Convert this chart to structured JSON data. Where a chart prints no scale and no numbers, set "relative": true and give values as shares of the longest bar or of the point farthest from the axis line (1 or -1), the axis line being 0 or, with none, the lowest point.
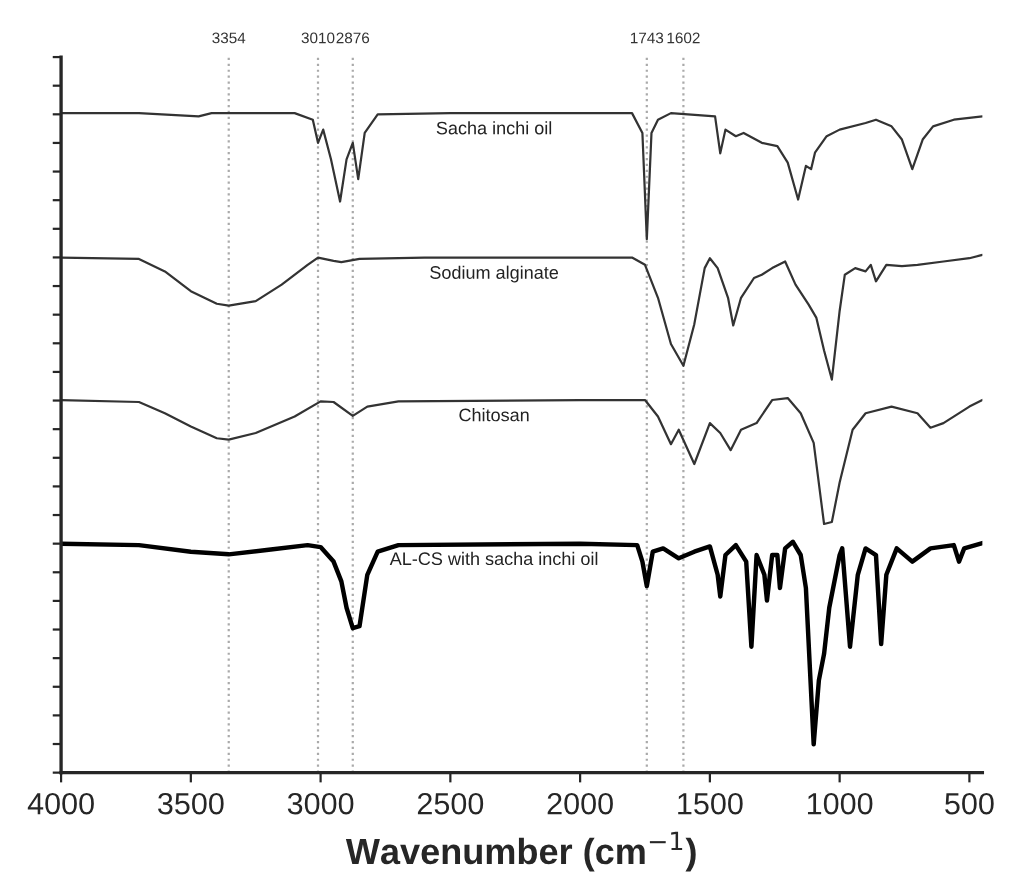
{
  "chart_data": {
    "type": "line",
    "relative": true,
    "xlabel": "Wavenumber (cm$^{−1}$)",
    "xlim": [
      4000,
      450
    ],
    "xticks": [
      4000,
      3500,
      3000,
      2500,
      2000,
      1500,
      1000,
      500
    ],
    "tick_labels": "x",
    "grid": false,
    "legend": false,
    "line_style": "solid",
    "ref_lines": [
      {
        "axis": "x",
        "value": 3354,
        "label": "3354",
        "color": "#aaaaaa",
        "line_style": "dotted"
      },
      {
        "axis": "x",
        "value": 3010,
        "label": "3010",
        "color": "#aaaaaa",
        "line_style": "dotted"
      },
      {
        "axis": "x",
        "value": 2876,
        "label": "2876",
        "color": "#aaaaaa",
        "line_style": "dotted"
      },
      {
        "axis": "x",
        "value": 1743,
        "label": "1743",
        "color": "#aaaaaa",
        "line_style": "dotted"
      },
      {
        "axis": "x",
        "value": 1602,
        "label": "1602",
        "color": "#aaaaaa",
        "line_style": "dotted"
      }
    ],
    "series": [
      {
        "name": "Sacha inchi oil",
        "color": "#333333",
        "x": [
          4000,
          3700,
          3470,
          3420,
          3100,
          3030,
          3010,
          2990,
          2960,
          2925,
          2900,
          2876,
          2855,
          2830,
          2780,
          2500,
          1800,
          1760,
          1743,
          1725,
          1700,
          1650,
          1480,
          1460,
          1440,
          1400,
          1370,
          1300,
          1240,
          1200,
          1160,
          1130,
          1110,
          1095,
          1050,
          1000,
          900,
          860,
          800,
          760,
          720,
          680,
          640,
          560,
          450
        ],
        "values": [
          1.0,
          1.0,
          0.995,
          1.0,
          1.0,
          0.99,
          0.955,
          0.975,
          0.93,
          0.866,
          0.93,
          0.955,
          0.9,
          0.97,
          0.998,
          1.0,
          1.0,
          0.97,
          0.809,
          0.97,
          0.99,
          1.0,
          0.995,
          0.939,
          0.975,
          0.965,
          0.97,
          0.955,
          0.95,
          0.925,
          0.869,
          0.92,
          0.915,
          0.94,
          0.965,
          0.975,
          0.985,
          0.99,
          0.98,
          0.96,
          0.915,
          0.96,
          0.98,
          0.99,
          0.995
        ]
      },
      {
        "name": "Sodium alginate",
        "color": "#333333",
        "x": [
          4000,
          3700,
          3600,
          3500,
          3400,
          3354,
          3250,
          3150,
          3050,
          3010,
          2950,
          2920,
          2850,
          2600,
          2000,
          1800,
          1750,
          1700,
          1650,
          1602,
          1560,
          1520,
          1500,
          1470,
          1430,
          1410,
          1380,
          1330,
          1300,
          1260,
          1210,
          1170,
          1120,
          1090,
          1060,
          1030,
          1000,
          980,
          940,
          900,
          880,
          860,
          820,
          760,
          700,
          600,
          500,
          450
        ],
        "values": [
          0.781,
          0.779,
          0.76,
          0.73,
          0.711,
          0.708,
          0.715,
          0.74,
          0.77,
          0.781,
          0.776,
          0.774,
          0.779,
          0.781,
          0.781,
          0.781,
          0.77,
          0.72,
          0.65,
          0.617,
          0.68,
          0.765,
          0.78,
          0.765,
          0.72,
          0.678,
          0.72,
          0.75,
          0.755,
          0.765,
          0.775,
          0.74,
          0.71,
          0.69,
          0.64,
          0.596,
          0.7,
          0.755,
          0.765,
          0.76,
          0.77,
          0.745,
          0.77,
          0.768,
          0.77,
          0.775,
          0.78,
          0.785
        ]
      },
      {
        "name": "Chitosan",
        "color": "#333333",
        "x": [
          4000,
          3700,
          3600,
          3500,
          3400,
          3354,
          3250,
          3100,
          3000,
          2950,
          2876,
          2820,
          2700,
          2000,
          1750,
          1700,
          1650,
          1620,
          1560,
          1500,
          1460,
          1420,
          1380,
          1320,
          1260,
          1200,
          1150,
          1100,
          1060,
          1030,
          1000,
          950,
          900,
          800,
          700,
          650,
          600,
          500,
          450
        ],
        "values": [
          0.565,
          0.562,
          0.545,
          0.525,
          0.507,
          0.505,
          0.515,
          0.54,
          0.563,
          0.562,
          0.541,
          0.555,
          0.563,
          0.565,
          0.565,
          0.54,
          0.498,
          0.52,
          0.468,
          0.53,
          0.515,
          0.489,
          0.52,
          0.53,
          0.565,
          0.568,
          0.545,
          0.5,
          0.377,
          0.38,
          0.44,
          0.52,
          0.545,
          0.555,
          0.545,
          0.523,
          0.53,
          0.555,
          0.565
        ]
      },
      {
        "name": "AL-CS with sacha inchi oil",
        "color": "#000000",
        "x": [
          4000,
          3700,
          3500,
          3354,
          3200,
          3050,
          3000,
          2950,
          2920,
          2900,
          2876,
          2850,
          2820,
          2780,
          2700,
          2000,
          1780,
          1760,
          1743,
          1720,
          1680,
          1620,
          1560,
          1500,
          1470,
          1460,
          1440,
          1400,
          1360,
          1340,
          1320,
          1290,
          1280,
          1260,
          1240,
          1230,
          1210,
          1180,
          1150,
          1130,
          1100,
          1080,
          1060,
          1040,
          1000,
          990,
          960,
          930,
          900,
          860,
          840,
          820,
          780,
          720,
          650,
          560,
          540,
          520,
          450
        ],
        "values": [
          0.347,
          0.345,
          0.335,
          0.331,
          0.338,
          0.345,
          0.342,
          0.32,
          0.29,
          0.25,
          0.219,
          0.222,
          0.3,
          0.335,
          0.345,
          0.347,
          0.345,
          0.32,
          0.283,
          0.335,
          0.34,
          0.325,
          0.335,
          0.343,
          0.3,
          0.267,
          0.33,
          0.345,
          0.32,
          0.191,
          0.33,
          0.3,
          0.261,
          0.33,
          0.33,
          0.28,
          0.34,
          0.35,
          0.33,
          0.28,
          0.043,
          0.14,
          0.18,
          0.25,
          0.33,
          0.34,
          0.191,
          0.3,
          0.34,
          0.33,
          0.195,
          0.3,
          0.34,
          0.32,
          0.34,
          0.345,
          0.32,
          0.34,
          0.348
        ]
      }
    ]
  }
}
